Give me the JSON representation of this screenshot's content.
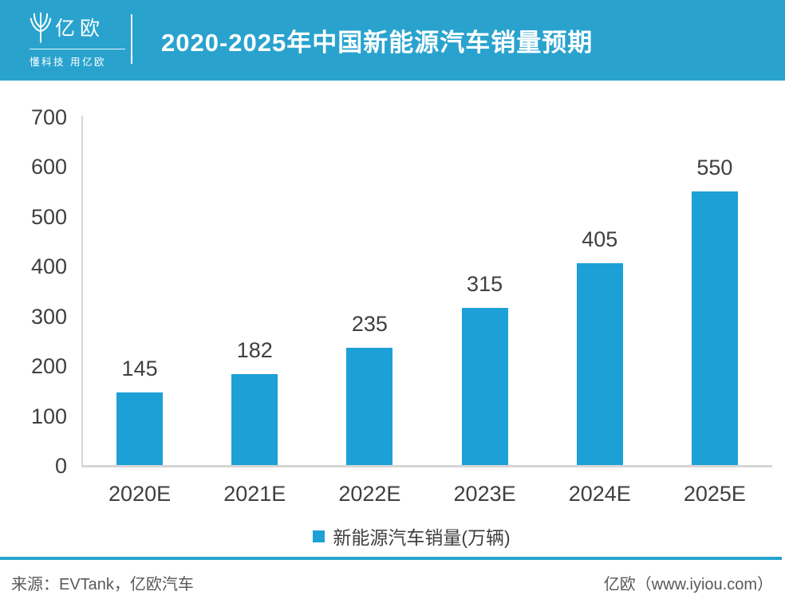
{
  "header": {
    "logo": {
      "name": "亿欧",
      "tagline": "懂科技 用亿欧"
    },
    "title": "2020-2025年中国新能源汽车销量预期"
  },
  "chart_data": {
    "type": "bar",
    "title": "2020-2025年中国新能源汽车销量预期",
    "categories": [
      "2020E",
      "2021E",
      "2022E",
      "2023E",
      "2024E",
      "2025E"
    ],
    "values": [
      145,
      182,
      235,
      315,
      405,
      550
    ],
    "series_name": "新能源汽车销量(万辆)",
    "xlabel": "",
    "ylabel": "",
    "ylim": [
      0,
      700
    ],
    "yticks": [
      0,
      100,
      200,
      300,
      400,
      500,
      600,
      700
    ],
    "grid": false,
    "data_labels": true,
    "legend_position": "bottom",
    "bar_color": "#1CA0D6",
    "axis_color": "#d6d6d6",
    "label_color": "#3f3f3f"
  },
  "legend": {
    "label": "新能源汽车销量(万辆)",
    "swatch_color": "#1CA0D6"
  },
  "footer": {
    "source": "来源：EVTank，亿欧汽车",
    "site": "亿欧（www.iyiou.com）"
  },
  "colors": {
    "brand_blue": "#29A3CE",
    "bar_blue": "#1CA0D6"
  }
}
